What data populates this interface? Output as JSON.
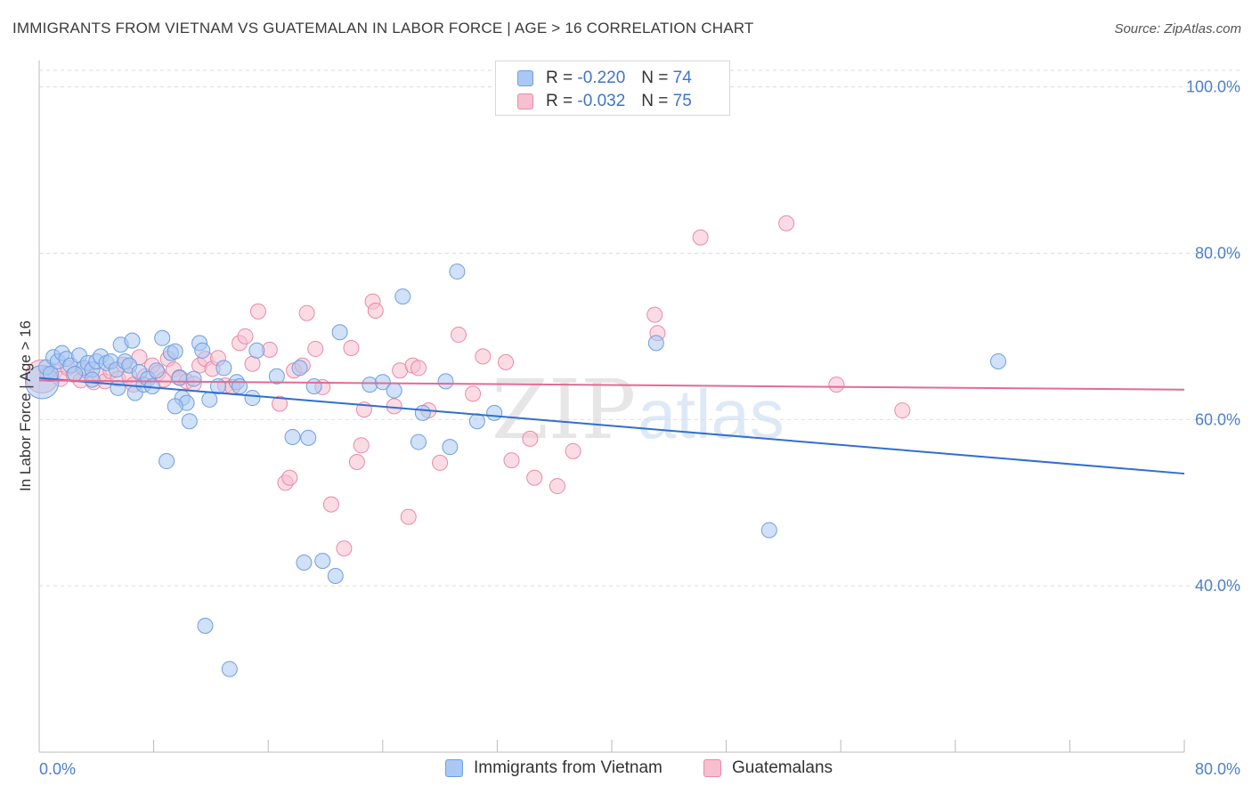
{
  "title": "IMMIGRANTS FROM VIETNAM VS GUATEMALAN IN LABOR FORCE | AGE > 16 CORRELATION CHART",
  "source": "Source: ZipAtlas.com",
  "watermark": {
    "zip": "ZIP",
    "atlas": "atlas"
  },
  "legend": {
    "r_label": "R =",
    "n_label": "N =",
    "rows": [
      {
        "r": "-0.220",
        "n": "74",
        "color": "#a9c8f3",
        "border": "#6f9fe0"
      },
      {
        "r": "-0.032",
        "n": "75",
        "color": "#f7bfd0",
        "border": "#e98aa8"
      }
    ]
  },
  "bottom_legend": [
    {
      "label": "Immigrants from Vietnam",
      "color": "#a9c8f3",
      "border": "#6f9fe0"
    },
    {
      "label": "Guatemalans",
      "color": "#f7bfd0",
      "border": "#e98aa8"
    }
  ],
  "chart_data": {
    "type": "scatter",
    "title": "IMMIGRANTS FROM VIETNAM VS GUATEMALAN IN LABOR FORCE | AGE > 16 CORRELATION CHART",
    "xlabel": "",
    "ylabel": "In Labor Force | Age > 16",
    "xlim": [
      0,
      80
    ],
    "ylim": [
      20,
      102
    ],
    "x_tick_labels": [
      "0.0%",
      "80.0%"
    ],
    "y_ticks": [
      40,
      60,
      80,
      100
    ],
    "y_tick_labels": [
      "40.0%",
      "60.0%",
      "80.0%",
      "100.0%"
    ],
    "grid": true,
    "series": [
      {
        "name": "Immigrants from Vietnam",
        "color": "#6f9fe0",
        "fill": "#a9c8f3",
        "trend": {
          "x0": 0,
          "y0": 65.0,
          "x1": 80,
          "y1": 53.5,
          "color": "#2f6fd0"
        },
        "points": [
          [
            0.2,
            64.5,
            2.2
          ],
          [
            0.5,
            66.3,
            1
          ],
          [
            0.8,
            65.5,
            1
          ],
          [
            1.0,
            67.5,
            1
          ],
          [
            1.3,
            67.0,
            1
          ],
          [
            1.6,
            68.0,
            1
          ],
          [
            1.9,
            67.3,
            1
          ],
          [
            2.2,
            66.5,
            1
          ],
          [
            2.8,
            67.7,
            1
          ],
          [
            3.1,
            66.2,
            1
          ],
          [
            3.4,
            66.8,
            1
          ],
          [
            3.7,
            66.0,
            1
          ],
          [
            4.0,
            67.0,
            1
          ],
          [
            4.3,
            67.6,
            1
          ],
          [
            4.7,
            66.8,
            1
          ],
          [
            5.0,
            67.0,
            1
          ],
          [
            5.4,
            66.0,
            1
          ],
          [
            5.7,
            69.0,
            1
          ],
          [
            6.0,
            67.0,
            1
          ],
          [
            6.3,
            66.5,
            1
          ],
          [
            6.5,
            69.5,
            1
          ],
          [
            6.7,
            63.2,
            1
          ],
          [
            7.0,
            65.7,
            1
          ],
          [
            7.3,
            64.2,
            1
          ],
          [
            7.6,
            64.9,
            1
          ],
          [
            7.9,
            64.0,
            1
          ],
          [
            8.2,
            65.9,
            1
          ],
          [
            8.6,
            69.8,
            1
          ],
          [
            8.9,
            55.0,
            1
          ],
          [
            9.2,
            68.0,
            1
          ],
          [
            9.5,
            68.2,
            1
          ],
          [
            9.8,
            65.0,
            1
          ],
          [
            10.0,
            62.6,
            1
          ],
          [
            10.3,
            62.0,
            1
          ],
          [
            10.5,
            59.8,
            1
          ],
          [
            10.8,
            64.9,
            1
          ],
          [
            11.2,
            69.2,
            1
          ],
          [
            11.4,
            68.3,
            1
          ],
          [
            11.6,
            35.2,
            1
          ],
          [
            11.9,
            62.4,
            1
          ],
          [
            12.5,
            64.0,
            1
          ],
          [
            13.3,
            30.0,
            1
          ],
          [
            13.8,
            64.5,
            1
          ],
          [
            14.0,
            64.0,
            1
          ],
          [
            14.9,
            62.6,
            1
          ],
          [
            16.6,
            65.2,
            1
          ],
          [
            17.7,
            57.9,
            1
          ],
          [
            18.2,
            66.2,
            1
          ],
          [
            18.5,
            42.8,
            1
          ],
          [
            18.8,
            57.8,
            1
          ],
          [
            19.2,
            64.0,
            1
          ],
          [
            19.8,
            43.0,
            1
          ],
          [
            20.7,
            41.2,
            1
          ],
          [
            23.1,
            64.2,
            1
          ],
          [
            24.0,
            64.5,
            1
          ],
          [
            24.8,
            63.5,
            1
          ],
          [
            25.4,
            74.8,
            1
          ],
          [
            26.5,
            57.3,
            1
          ],
          [
            26.8,
            60.8,
            1
          ],
          [
            28.4,
            64.6,
            1
          ],
          [
            28.7,
            56.7,
            1
          ],
          [
            29.2,
            77.8,
            1
          ],
          [
            30.6,
            59.8,
            1
          ],
          [
            31.8,
            60.8,
            1
          ],
          [
            43.1,
            69.2,
            1
          ],
          [
            51.0,
            46.7,
            1
          ],
          [
            67.0,
            67.0,
            1
          ],
          [
            15.2,
            68.3,
            1
          ],
          [
            21.0,
            70.5,
            1
          ],
          [
            3.7,
            64.8,
            1
          ],
          [
            5.5,
            63.8,
            1
          ],
          [
            12.9,
            66.2,
            1
          ],
          [
            9.5,
            61.6,
            1
          ],
          [
            2.5,
            65.5,
            1
          ]
        ]
      },
      {
        "name": "Guatemalans",
        "color": "#e98aa8",
        "fill": "#f7bfd0",
        "trend": {
          "x0": 0,
          "y0": 64.7,
          "x1": 80,
          "y1": 63.6,
          "color": "#e36b95"
        },
        "points": [
          [
            0.2,
            65.2,
            2.2
          ],
          [
            0.6,
            65.5,
            1
          ],
          [
            1.1,
            65.8,
            1
          ],
          [
            1.5,
            64.9,
            1
          ],
          [
            2.0,
            66.2,
            1
          ],
          [
            2.4,
            65.4,
            1
          ],
          [
            2.9,
            64.7,
            1
          ],
          [
            3.3,
            65.9,
            1
          ],
          [
            3.8,
            64.5,
            1
          ],
          [
            4.2,
            65.3,
            1
          ],
          [
            4.6,
            64.6,
            1
          ],
          [
            5.0,
            65.8,
            1
          ],
          [
            5.5,
            64.9,
            1
          ],
          [
            5.9,
            66.6,
            1
          ],
          [
            6.3,
            65.3,
            1
          ],
          [
            6.6,
            64.2,
            1
          ],
          [
            7.0,
            67.5,
            1
          ],
          [
            7.4,
            65.2,
            1
          ],
          [
            7.9,
            66.5,
            1
          ],
          [
            8.3,
            65.6,
            1
          ],
          [
            8.7,
            64.8,
            1
          ],
          [
            9.0,
            67.3,
            1
          ],
          [
            9.4,
            66.0,
            1
          ],
          [
            9.8,
            65.1,
            1
          ],
          [
            10.3,
            64.6,
            1
          ],
          [
            10.8,
            64.3,
            1
          ],
          [
            11.2,
            66.5,
            1
          ],
          [
            11.6,
            67.3,
            1
          ],
          [
            12.1,
            66.1,
            1
          ],
          [
            12.5,
            67.4,
            1
          ],
          [
            13.0,
            64.1,
            1
          ],
          [
            13.5,
            63.9,
            1
          ],
          [
            14.0,
            69.2,
            1
          ],
          [
            14.4,
            70.0,
            1
          ],
          [
            14.9,
            66.7,
            1
          ],
          [
            15.3,
            73.0,
            1
          ],
          [
            16.1,
            68.4,
            1
          ],
          [
            16.8,
            61.9,
            1
          ],
          [
            17.2,
            52.4,
            1
          ],
          [
            17.5,
            53.0,
            1
          ],
          [
            17.8,
            65.9,
            1
          ],
          [
            18.4,
            66.5,
            1
          ],
          [
            18.7,
            72.8,
            1
          ],
          [
            19.3,
            68.5,
            1
          ],
          [
            19.8,
            63.9,
            1
          ],
          [
            20.4,
            49.8,
            1
          ],
          [
            21.3,
            44.5,
            1
          ],
          [
            21.8,
            68.6,
            1
          ],
          [
            22.2,
            54.9,
            1
          ],
          [
            22.5,
            56.9,
            1
          ],
          [
            22.7,
            61.2,
            1
          ],
          [
            23.3,
            74.2,
            1
          ],
          [
            23.5,
            73.1,
            1
          ],
          [
            24.8,
            61.6,
            1
          ],
          [
            25.2,
            65.9,
            1
          ],
          [
            25.8,
            48.3,
            1
          ],
          [
            26.1,
            66.5,
            1
          ],
          [
            26.5,
            66.2,
            1
          ],
          [
            27.2,
            61.1,
            1
          ],
          [
            28.0,
            54.8,
            1
          ],
          [
            29.3,
            70.2,
            1
          ],
          [
            30.3,
            63.1,
            1
          ],
          [
            31.0,
            67.6,
            1
          ],
          [
            32.6,
            66.9,
            1
          ],
          [
            33.0,
            55.1,
            1
          ],
          [
            34.3,
            57.7,
            1
          ],
          [
            34.6,
            53.0,
            1
          ],
          [
            36.2,
            52.0,
            1
          ],
          [
            37.3,
            56.2,
            1
          ],
          [
            43.0,
            72.6,
            1
          ],
          [
            43.2,
            70.4,
            1
          ],
          [
            46.2,
            81.9,
            1
          ],
          [
            52.2,
            83.6,
            1
          ],
          [
            55.7,
            64.2,
            1
          ],
          [
            60.3,
            61.1,
            1
          ]
        ]
      }
    ]
  }
}
